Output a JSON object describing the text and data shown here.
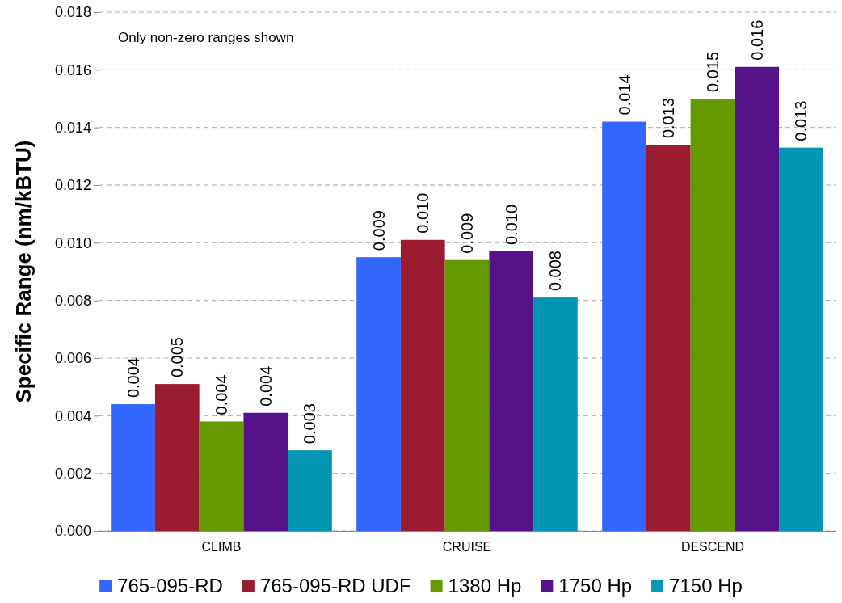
{
  "chart_data": {
    "type": "bar",
    "ylabel": "Specific Range (nm/kBTU)",
    "annotations": [
      "Only non-zero ranges shown"
    ],
    "categories": [
      "CLIMB",
      "CRUISE",
      "DESCEND"
    ],
    "series": [
      {
        "name": "765-095-RD",
        "color": "#3366ff",
        "values": [
          0.0044,
          0.0095,
          0.0142
        ],
        "value_labels": [
          "0.004",
          "0.009",
          "0.014"
        ]
      },
      {
        "name": "765-095-RD UDF",
        "color": "#9b1c31",
        "values": [
          0.0051,
          0.0101,
          0.0134
        ],
        "value_labels": [
          "0.005",
          "0.010",
          "0.013"
        ]
      },
      {
        "name": "1380 Hp",
        "color": "#669900",
        "values": [
          0.0038,
          0.0094,
          0.015
        ],
        "value_labels": [
          "0.004",
          "0.009",
          "0.015"
        ]
      },
      {
        "name": "1750 Hp",
        "color": "#561289",
        "values": [
          0.0041,
          0.0097,
          0.0161
        ],
        "value_labels": [
          "0.004",
          "0.010",
          "0.016"
        ]
      },
      {
        "name": "7150 Hp",
        "color": "#0096b4",
        "values": [
          0.0028,
          0.0081,
          0.0133
        ],
        "value_labels": [
          "0.003",
          "0.008",
          "0.013"
        ]
      }
    ],
    "ylim": [
      0,
      0.018
    ],
    "yticks": [
      {
        "value": 0,
        "label": "0.000"
      },
      {
        "value": 0.002,
        "label": "0.002"
      },
      {
        "value": 0.004,
        "label": "0.004"
      },
      {
        "value": 0.006,
        "label": "0.006"
      },
      {
        "value": 0.008,
        "label": "0.008"
      },
      {
        "value": 0.01,
        "label": "0.010"
      },
      {
        "value": 0.012,
        "label": "0.012"
      },
      {
        "value": 0.014,
        "label": "0.014"
      },
      {
        "value": 0.016,
        "label": "0.016"
      },
      {
        "value": 0.018,
        "label": "0.018"
      }
    ],
    "grid": "y",
    "legend": "bottom"
  }
}
